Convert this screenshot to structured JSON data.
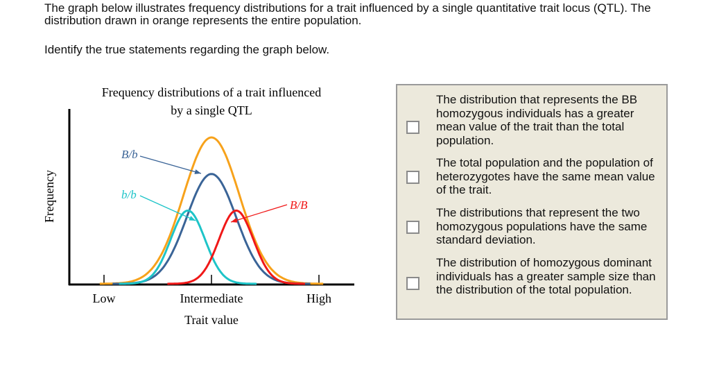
{
  "intro": "The graph below illustrates frequency distributions for a trait influenced by a single quantitative trait locus (QTL). The distribution drawn in orange represents the entire population.",
  "question": "Identify the true statements regarding the graph below.",
  "chart_data": {
    "type": "line",
    "title": "Frequency distributions of a trait influenced by a single QTL",
    "xlabel": "Trait value",
    "ylabel": "Frequency",
    "x_tick_labels": [
      "Low",
      "Intermediate",
      "High"
    ],
    "x_tick_positions": [
      -1,
      0,
      1
    ],
    "grid": false,
    "series": [
      {
        "name": "",
        "role": "total population",
        "color": "#f7a21b",
        "distribution": "normal",
        "mean": 0,
        "sd": 0.26,
        "peak": 1.0
      },
      {
        "name": "B/b",
        "color": "#3a6497",
        "distribution": "normal",
        "mean": 0,
        "sd": 0.23,
        "peak": 0.75
      },
      {
        "name": "b/b",
        "color": "#1ec4c8",
        "distribution": "normal",
        "mean": -0.22,
        "sd": 0.16,
        "peak": 0.5
      },
      {
        "name": "B/B",
        "color": "#f01818",
        "distribution": "normal",
        "mean": 0.23,
        "sd": 0.16,
        "peak": 0.5
      }
    ]
  },
  "options": [
    {
      "text": "The distribution that represents the BB homozygous individuals has a greater mean value of the trait than the total population.",
      "checked": false
    },
    {
      "text": "The total population and the population of heterozygotes have the same mean value of the trait.",
      "checked": false
    },
    {
      "text": "The distributions that represent the two homozygous populations have the same standard deviation.",
      "checked": false
    },
    {
      "text": "The distribution of homozygous dominant individuals has a greater sample size than the distribution of the total population.",
      "checked": false
    }
  ]
}
